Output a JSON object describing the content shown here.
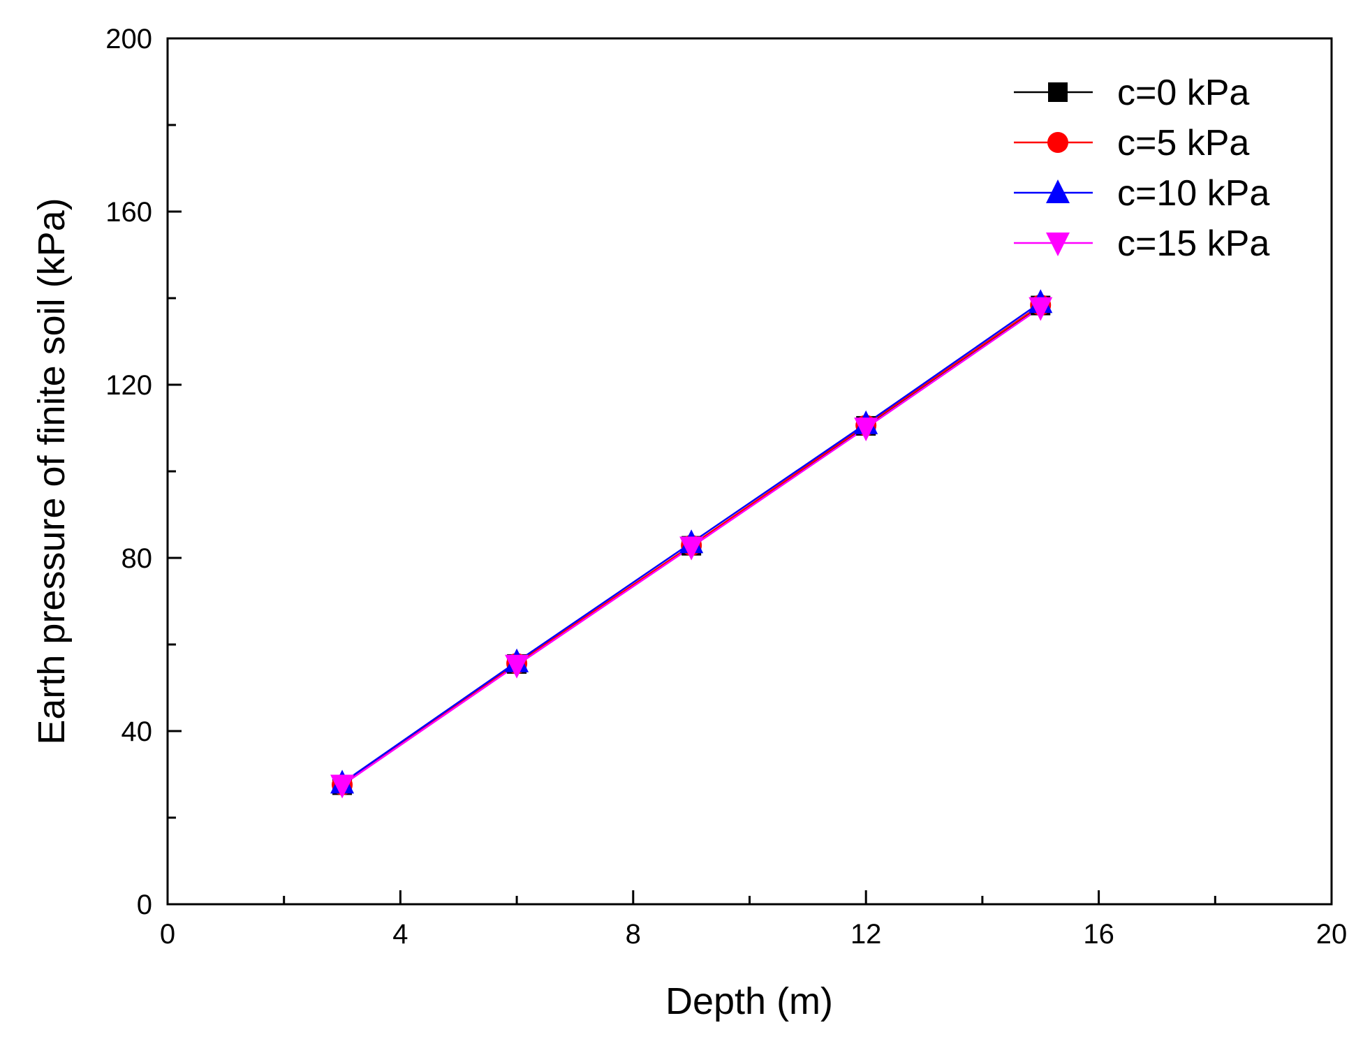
{
  "chart_data": {
    "type": "line",
    "xlabel": "Depth (m)",
    "ylabel": "Earth pressure of finite soil (kPa)",
    "xlim": [
      0,
      20
    ],
    "ylim": [
      0,
      200
    ],
    "xticks": [
      0,
      4,
      8,
      12,
      16,
      20
    ],
    "yticks": [
      0,
      40,
      80,
      120,
      160,
      200
    ],
    "x_minor_step": 2,
    "y_minor_step": 20,
    "grid": false,
    "legend_position": "top-right",
    "x": [
      3,
      6,
      9,
      12,
      15
    ],
    "series": [
      {
        "name": "c=0 kPa",
        "color": "#000000",
        "marker": "square",
        "values": [
          27.5,
          55.5,
          82.8,
          110.5,
          138.3
        ]
      },
      {
        "name": "c=5 kPa",
        "color": "#ff0000",
        "marker": "circle",
        "values": [
          27.6,
          55.6,
          82.9,
          110.6,
          138.4
        ]
      },
      {
        "name": "c=10 kPa",
        "color": "#0000ff",
        "marker": "triangle-up",
        "values": [
          28.0,
          56.0,
          83.5,
          111.0,
          139.0
        ]
      },
      {
        "name": "c=15 kPa",
        "color": "#ff00ff",
        "marker": "triangle-down",
        "values": [
          27.5,
          55.2,
          82.5,
          110.0,
          137.8
        ]
      }
    ]
  }
}
